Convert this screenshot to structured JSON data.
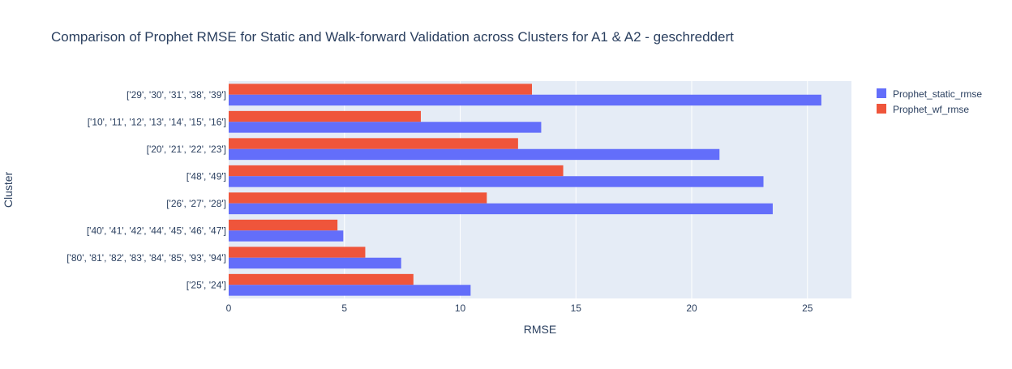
{
  "chart_data": {
    "type": "bar",
    "orientation": "horizontal",
    "title": "Comparison of Prophet RMSE for Static and Walk-forward Validation across Clusters for A1 & A2 -  geschreddert",
    "xlabel": "RMSE",
    "ylabel": "Cluster",
    "xlim": [
      0,
      26.9
    ],
    "x_ticks": [
      0,
      5,
      10,
      15,
      20,
      25
    ],
    "grid": true,
    "legend_position": "top-right",
    "categories": [
      "['29', '30', '31', '38', '39']",
      "['10', '11', '12', '13', '14', '15', '16']",
      "['20', '21', '22', '23']",
      "['48', '49']",
      "['26', '27', '28']",
      "['40', '41', '42', '44', '45', '46', '47']",
      "['80', '81', '82', '83', '84', '85', '93', '94']",
      "['25', '24']"
    ],
    "series": [
      {
        "name": "Prophet_static_rmse",
        "color": "#636efa",
        "values": [
          25.6,
          13.5,
          21.2,
          23.1,
          23.5,
          4.95,
          7.45,
          10.45
        ]
      },
      {
        "name": "Prophet_wf_rmse",
        "color": "#ef553b",
        "values": [
          13.1,
          8.3,
          12.5,
          14.45,
          11.15,
          4.7,
          5.9,
          7.98
        ]
      }
    ],
    "colors": {
      "plot_background": "#e5ecf6",
      "grid": "#ffffff",
      "text": "#2a3f5f"
    }
  }
}
